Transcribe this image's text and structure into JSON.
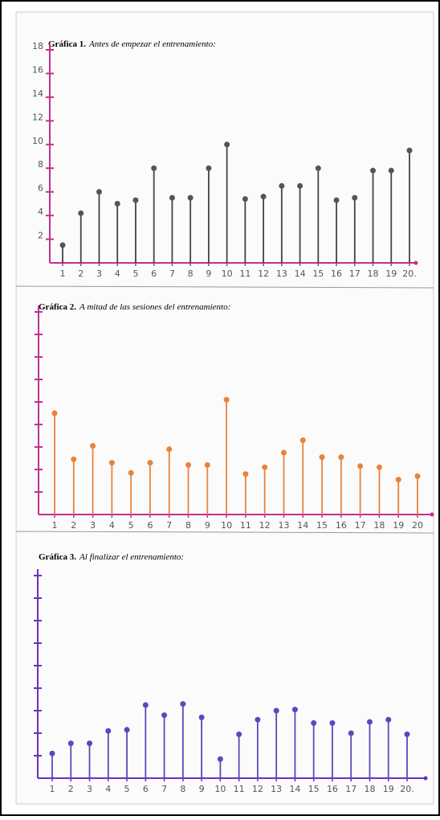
{
  "chart_data": [
    {
      "type": "lollipop",
      "label": "Gráfica 1.",
      "title": "Antes de empezar el entrenamiento:",
      "categories": [
        "1",
        "2",
        "3",
        "4",
        "5",
        "6",
        "7",
        "8",
        "9",
        "10",
        "11",
        "12",
        "13",
        "14",
        "15",
        "16",
        "17",
        "18",
        "19",
        "20."
      ],
      "values": [
        1.5,
        4.2,
        6,
        5,
        5.3,
        8,
        5.5,
        5.5,
        8,
        10,
        5.4,
        5.6,
        6.5,
        6.5,
        8,
        5.3,
        5.5,
        7.8,
        7.8,
        9.5
      ],
      "ylim": [
        0,
        18
      ],
      "yticks": [
        2,
        4,
        6,
        8,
        10,
        12,
        14,
        16,
        18
      ],
      "axis_color": "#c2308f",
      "stem_color": "#444444",
      "marker_color": "#555555"
    },
    {
      "type": "lollipop",
      "label": "Gráfica 2.",
      "title": "A mitad de las sesiones del entrenamiento:",
      "categories": [
        "1",
        "2",
        "3",
        "4",
        "5",
        "6",
        "7",
        "8",
        "9",
        "10",
        "11",
        "12",
        "13",
        "14",
        "15",
        "16",
        "17",
        "18",
        "19",
        "20"
      ],
      "values": [
        9,
        4.9,
        6.1,
        4.6,
        3.7,
        4.6,
        5.8,
        4.4,
        4.4,
        10.2,
        3.6,
        4.2,
        5.5,
        6.6,
        5.1,
        5.1,
        4.3,
        4.2,
        3.1,
        3.4
      ],
      "ylim": [
        0,
        18
      ],
      "yticks": [
        2,
        4,
        6,
        8,
        10,
        12,
        14,
        16,
        18
      ],
      "axis_color": "#c2308f",
      "stem_color": "#e8833a",
      "marker_color": "#e8833a"
    },
    {
      "type": "lollipop",
      "label": "Gráfica 3.",
      "title": "Al finalizar el entrenamiento:",
      "categories": [
        "1",
        "2",
        "3",
        "4",
        "5",
        "6",
        "7",
        "8",
        "9",
        "10",
        "11",
        "12",
        "13",
        "14",
        "15",
        "16",
        "17",
        "18",
        "19",
        "20."
      ],
      "values": [
        2.2,
        3.1,
        3.1,
        4.2,
        4.3,
        6.5,
        5.6,
        6.6,
        5.4,
        1.7,
        3.9,
        5.2,
        6,
        6.1,
        4.9,
        4.9,
        4,
        5,
        5.2,
        3.9
      ],
      "ylim": [
        0,
        18
      ],
      "yticks": [
        2,
        4,
        6,
        8,
        10,
        12,
        14,
        16,
        18
      ],
      "axis_color": "#6a2fc4",
      "stem_color": "#5a48bd",
      "marker_color": "#5a48bd"
    }
  ]
}
